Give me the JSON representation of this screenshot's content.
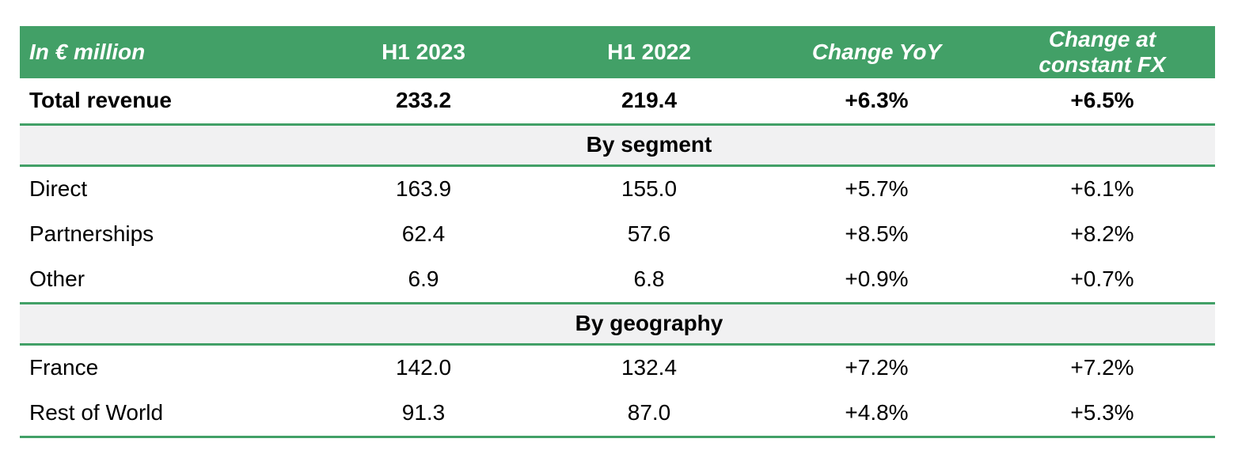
{
  "colors": {
    "header_background": "#42a067",
    "header_text": "#ffffff",
    "section_background": "#f1f1f2",
    "rule_line": "#42a067",
    "body_text": "#000000"
  },
  "table": {
    "header": {
      "unit": "In € million",
      "h1_2023": "H1 2023",
      "h1_2022": "H1 2022",
      "change_yoy": "Change YoY",
      "change_fx": "Change at constant FX"
    },
    "total_row": {
      "label": "Total revenue",
      "h1_2023": "233.2",
      "h1_2022": "219.4",
      "change_yoy": "+6.3%",
      "change_fx": "+6.5%"
    },
    "sections": [
      {
        "title": "By segment",
        "rows": [
          {
            "label": "Direct",
            "h1_2023": "163.9",
            "h1_2022": "155.0",
            "change_yoy": "+5.7%",
            "change_fx": "+6.1%"
          },
          {
            "label": "Partnerships",
            "h1_2023": "62.4",
            "h1_2022": "57.6",
            "change_yoy": "+8.5%",
            "change_fx": "+8.2%"
          },
          {
            "label": "Other",
            "h1_2023": "6.9",
            "h1_2022": "6.8",
            "change_yoy": "+0.9%",
            "change_fx": "+0.7%"
          }
        ]
      },
      {
        "title": "By geography",
        "rows": [
          {
            "label": "France",
            "h1_2023": "142.0",
            "h1_2022": "132.4",
            "change_yoy": "+7.2%",
            "change_fx": "+7.2%"
          },
          {
            "label": "Rest of World",
            "h1_2023": "91.3",
            "h1_2022": "87.0",
            "change_yoy": "+4.8%",
            "change_fx": "+5.3%"
          }
        ]
      }
    ]
  }
}
